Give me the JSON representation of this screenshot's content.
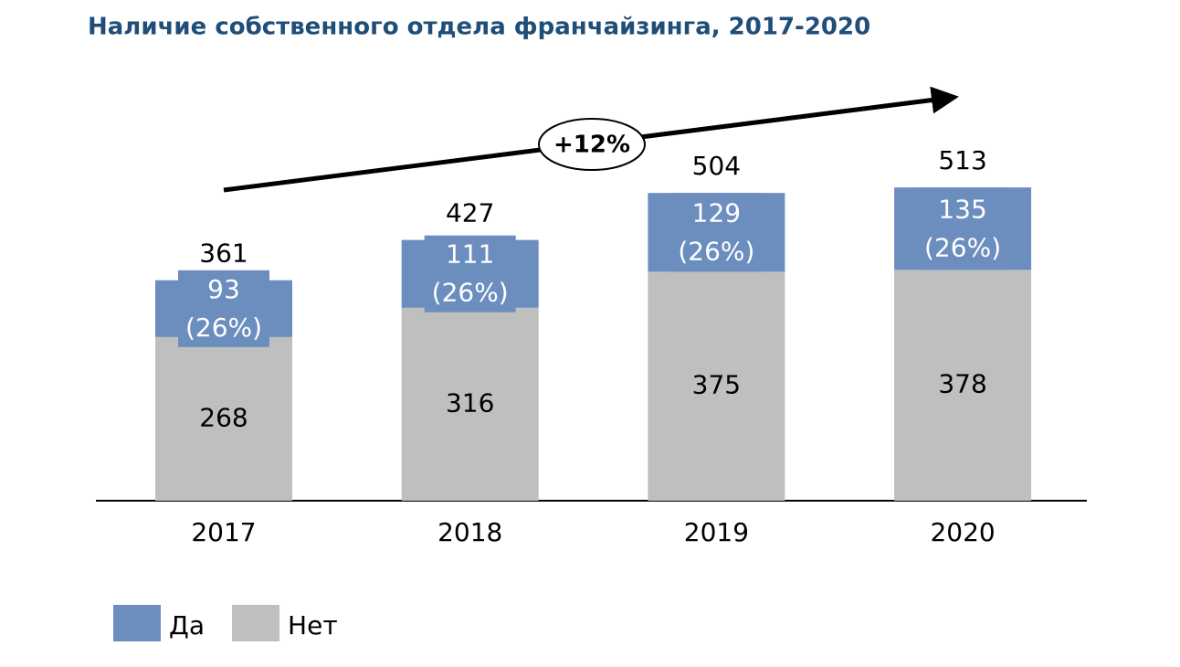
{
  "chart_data": {
    "type": "bar",
    "stacked": true,
    "title": "Наличие собственного отдела франчайзинга, 2017-2020",
    "annotation": "+12%",
    "categories": [
      "2017",
      "2018",
      "2019",
      "2020"
    ],
    "series": [
      {
        "name": "Да",
        "color": "#6c8ebf",
        "values": [
          93,
          111,
          129,
          135
        ],
        "shares": [
          {
            "value": 26,
            "label": "(26%)"
          },
          {
            "value": 26,
            "label": "(26%)"
          },
          {
            "value": 26,
            "label": "(26%)"
          },
          {
            "value": 26,
            "label": "(26%)"
          }
        ]
      },
      {
        "name": "Нет",
        "color": "#bfbfbf",
        "values": [
          268,
          316,
          375,
          378
        ]
      }
    ],
    "totals": [
      361,
      427,
      504,
      513
    ],
    "ylim": [
      0,
      600
    ],
    "legend": "bottom-left"
  }
}
